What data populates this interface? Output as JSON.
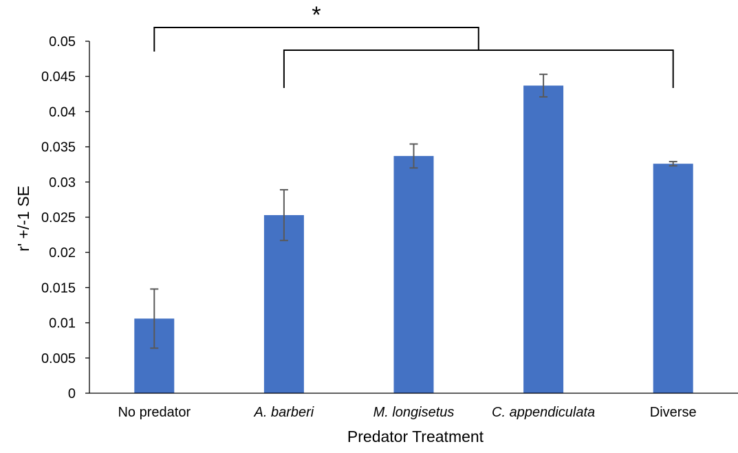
{
  "chart_data": {
    "type": "bar",
    "categories": [
      "No predator",
      "A. barberi",
      "M. longisetus",
      "C. appendiculata",
      "Diverse"
    ],
    "category_italic": [
      false,
      true,
      true,
      true,
      false
    ],
    "values": [
      0.0106,
      0.0253,
      0.0337,
      0.0437,
      0.0326
    ],
    "errors": [
      0.0042,
      0.0036,
      0.0017,
      0.0016,
      0.0003
    ],
    "ylim": [
      0,
      0.05
    ],
    "yticks": [
      0,
      0.005,
      0.01,
      0.015,
      0.02,
      0.025,
      0.03,
      0.035,
      0.04,
      0.045,
      0.05
    ],
    "ytick_labels": [
      "0",
      "0.005",
      "0.01",
      "0.015",
      "0.02",
      "0.025",
      "0.03",
      "0.035",
      "0.04",
      "0.045",
      "0.05"
    ],
    "xlabel": "Predator Treatment",
    "ylabel": "r' +/-1 SE",
    "grid": false,
    "legend": "none",
    "bar_color": "#4472C4",
    "error_bar_color": "#595959",
    "annotation": {
      "text": "*",
      "bracket_groups": [
        [
          "No predator"
        ],
        [
          "A. barberi",
          "Diverse"
        ]
      ]
    }
  }
}
